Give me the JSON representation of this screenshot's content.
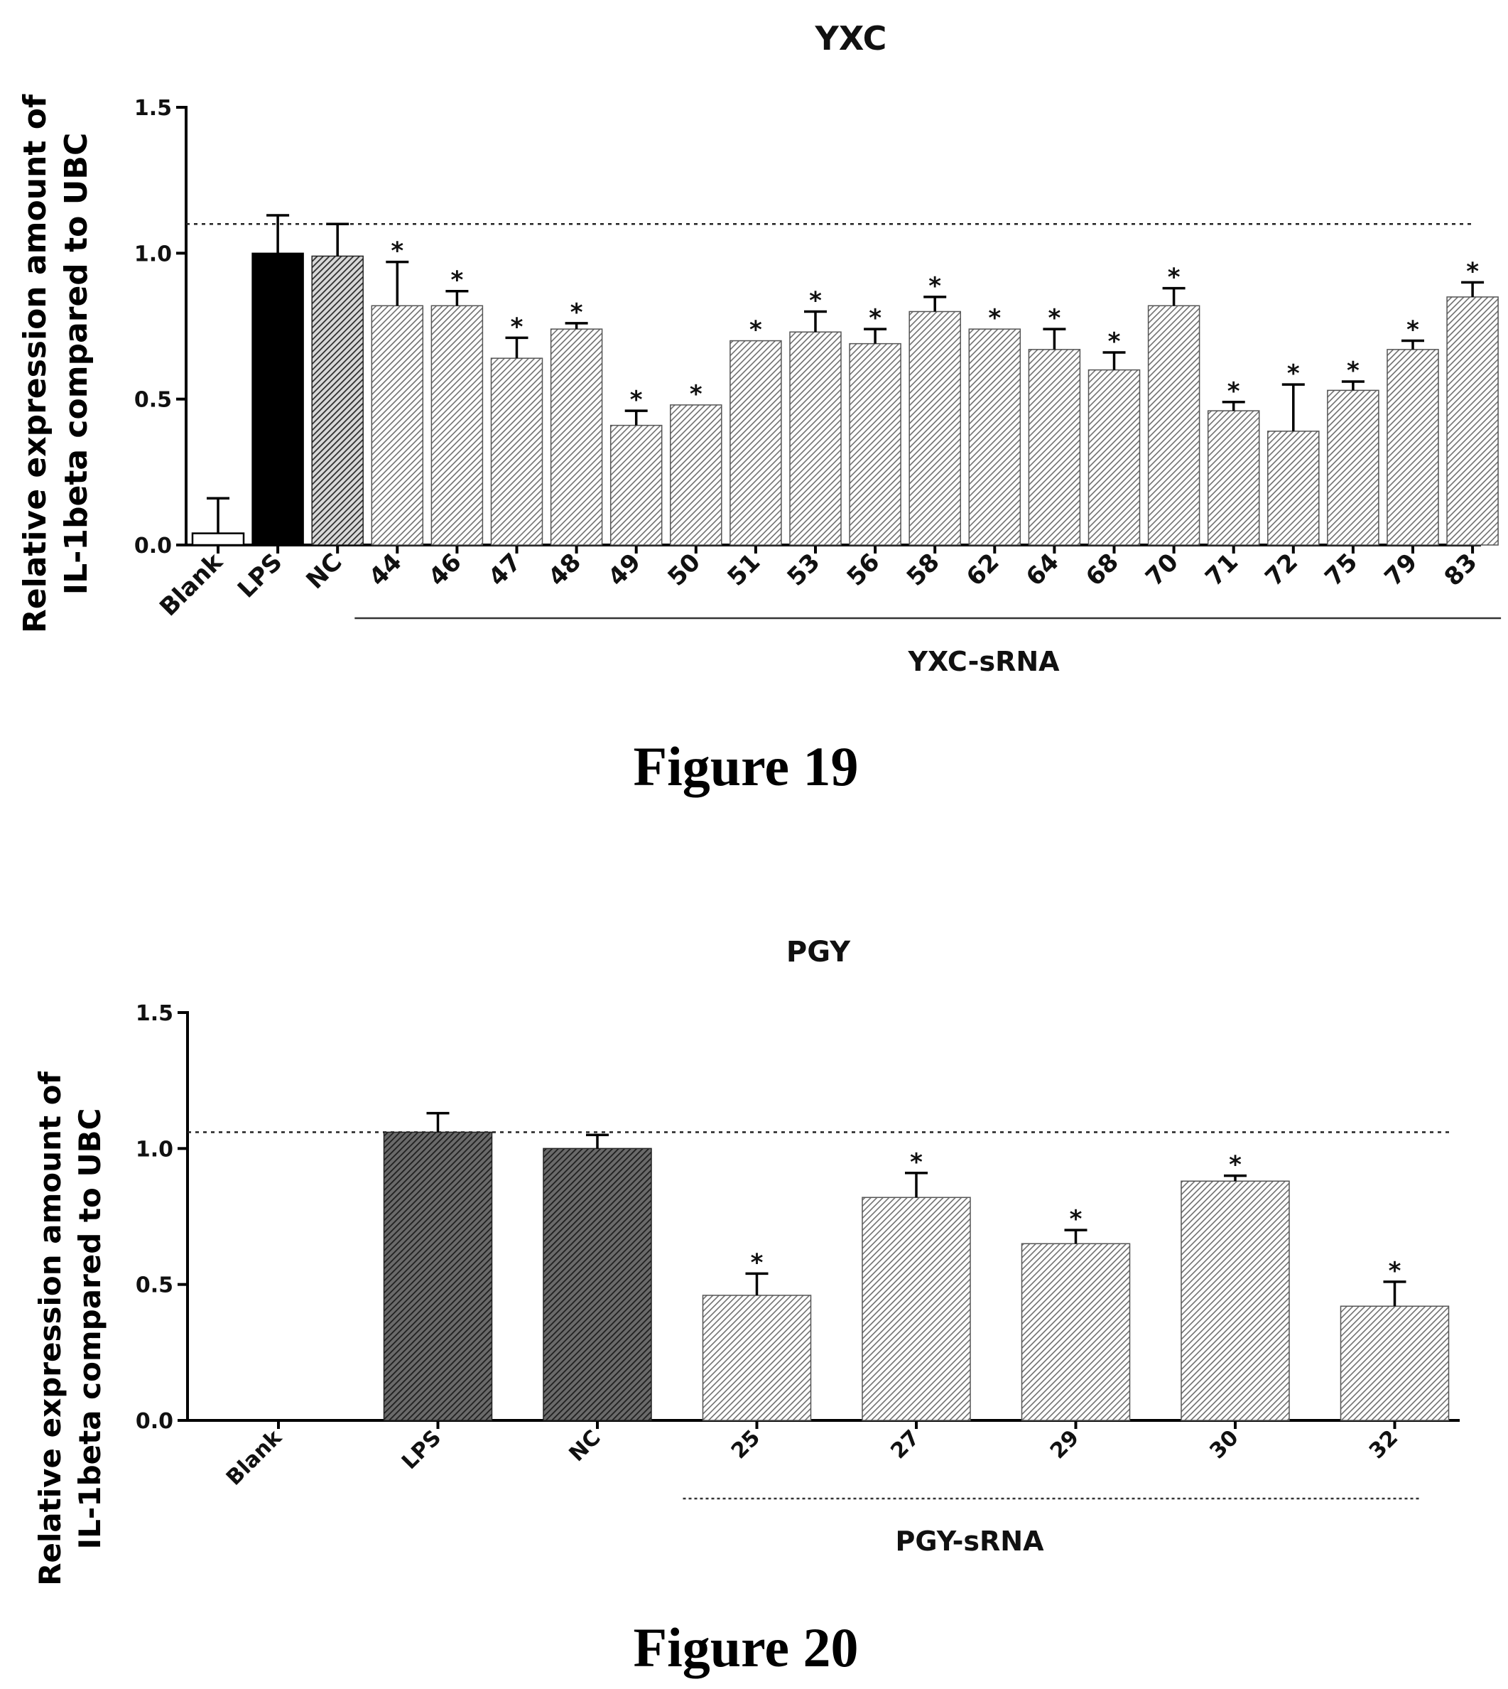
{
  "figures": [
    {
      "caption": "Figure 19",
      "group_label": "YXC-sRNA",
      "star_symbol": "*",
      "chart_data": {
        "type": "bar",
        "title": "YXC",
        "ylabel": [
          "Relative expression amount of",
          "IL-1beta compared to UBC"
        ],
        "xlabel": "",
        "ylim": [
          0,
          1.5
        ],
        "yticks": [
          "0.0",
          "0.5",
          "1.0",
          "1.5"
        ],
        "reference_line": 1.1,
        "categories": [
          "Blank",
          "LPS",
          "NC",
          "44",
          "46",
          "47",
          "48",
          "49",
          "50",
          "51",
          "53",
          "56",
          "58",
          "62",
          "64",
          "68",
          "70",
          "71",
          "72",
          "75",
          "79",
          "83"
        ],
        "values": [
          0.04,
          1.0,
          0.99,
          0.82,
          0.82,
          0.64,
          0.74,
          0.41,
          0.48,
          0.7,
          0.73,
          0.69,
          0.8,
          0.74,
          0.67,
          0.6,
          0.82,
          0.46,
          0.39,
          0.53,
          0.67,
          0.85
        ],
        "errors": [
          0.12,
          0.13,
          0.11,
          0.15,
          0.05,
          0.07,
          0.02,
          0.05,
          0.0,
          0.0,
          0.07,
          0.05,
          0.05,
          0.0,
          0.07,
          0.06,
          0.06,
          0.03,
          0.16,
          0.03,
          0.03,
          0.05
        ],
        "significant": [
          false,
          false,
          false,
          true,
          true,
          true,
          true,
          true,
          true,
          true,
          true,
          true,
          true,
          true,
          true,
          true,
          true,
          true,
          true,
          true,
          true,
          true
        ],
        "bar_styles": [
          "blank",
          "solid",
          "hatch",
          "hatch",
          "hatch",
          "hatch",
          "hatch",
          "hatch",
          "hatch",
          "hatch",
          "hatch",
          "hatch",
          "hatch",
          "hatch",
          "hatch",
          "hatch",
          "hatch",
          "hatch",
          "hatch",
          "hatch",
          "hatch",
          "hatch"
        ]
      }
    },
    {
      "caption": "Figure 20",
      "group_label": "PGY-sRNA",
      "star_symbol": "*",
      "chart_data": {
        "type": "bar",
        "title": "PGY",
        "ylabel": [
          "Relative expression amount of",
          "IL-1beta compared to UBC"
        ],
        "xlabel": "",
        "ylim": [
          0,
          1.5
        ],
        "yticks": [
          "0.0",
          "0.5",
          "1.0",
          "1.5"
        ],
        "reference_line": 1.06,
        "categories": [
          "Blank",
          "LPS",
          "NC",
          "25",
          "27",
          "29",
          "30",
          "32"
        ],
        "values": [
          0.0,
          1.06,
          1.0,
          0.46,
          0.82,
          0.65,
          0.88,
          0.42
        ],
        "errors": [
          0.0,
          0.07,
          0.05,
          0.08,
          0.09,
          0.05,
          0.02,
          0.09
        ],
        "significant": [
          false,
          false,
          false,
          true,
          true,
          true,
          true,
          true
        ],
        "bar_styles": [
          "none",
          "dark",
          "dark",
          "hatch",
          "hatch",
          "hatch",
          "hatch",
          "hatch"
        ]
      }
    }
  ],
  "colors": {
    "axis": "#000000",
    "bar_solid": "#000000",
    "bar_dark": "#3f3f3f",
    "bar_hatch_line": "#7a7a7a",
    "bar_hatch_bg": "#ffffff"
  }
}
